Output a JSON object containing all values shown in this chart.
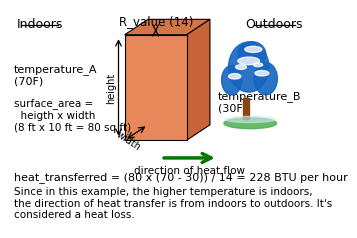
{
  "indoors_label": "Indoors",
  "outdoors_label": "Outdoors",
  "r_value_label": "R_value (14)",
  "temp_a_label": "temperature_A\n(70F)",
  "temp_b_label": "temperature_B\n(30F)",
  "surface_area_label": "surface_area =\n  heigth x width\n(8 ft x 10 ft = 80 sq ft)",
  "heat_direction_label": "direction of heat flow",
  "formula_label": "heat_transferred = (80 x (70 - 30)) / 14 = 228 BTU per hour",
  "explanation_label": "Since in this example, the higher temperature is indoors,\nthe direction of heat transfer is from indoors to outdoors. It's\nconsidered a heat loss.",
  "wall_face_color": "#E8875A",
  "wall_side_color": "#C8633A",
  "wall_top_color": "#D47545",
  "bg_color": "#ffffff",
  "arrow_color": "#007700",
  "text_color": "#000000",
  "height_label": "height",
  "width_label": "width",
  "tree_trunk_color": "#8B4513",
  "tree_foliage_color": "#1565C0",
  "tree_snow_color": "#ffffff",
  "tree_ground_color": "#4CAF50"
}
